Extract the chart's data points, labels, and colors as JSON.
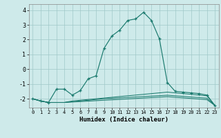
{
  "xlabel": "Humidex (Indice chaleur)",
  "bg_color": "#ceeaea",
  "grid_color": "#a0c8c8",
  "line_color": "#1a7a6e",
  "xlim": [
    -0.5,
    23.5
  ],
  "ylim": [
    -2.6,
    4.4
  ],
  "x_ticks": [
    0,
    1,
    2,
    3,
    4,
    5,
    6,
    7,
    8,
    9,
    10,
    11,
    12,
    13,
    14,
    15,
    16,
    17,
    18,
    19,
    20,
    21,
    22,
    23
  ],
  "y_ticks": [
    -2,
    -1,
    0,
    1,
    2,
    3,
    4
  ],
  "series": [
    [
      [
        0,
        -2.0
      ],
      [
        1,
        -2.15
      ],
      [
        2,
        -2.25
      ],
      [
        3,
        -1.35
      ],
      [
        4,
        -1.35
      ],
      [
        5,
        -1.75
      ],
      [
        6,
        -1.45
      ],
      [
        7,
        -0.65
      ],
      [
        8,
        -0.45
      ],
      [
        9,
        1.4
      ],
      [
        10,
        2.25
      ],
      [
        11,
        2.65
      ],
      [
        12,
        3.3
      ],
      [
        13,
        3.4
      ],
      [
        14,
        3.85
      ],
      [
        15,
        3.3
      ],
      [
        16,
        2.05
      ],
      [
        17,
        -0.9
      ],
      [
        18,
        -1.5
      ],
      [
        19,
        -1.55
      ],
      [
        20,
        -1.6
      ],
      [
        21,
        -1.65
      ],
      [
        22,
        -1.75
      ],
      [
        23,
        -2.45
      ]
    ],
    [
      [
        0,
        -2.0
      ],
      [
        1,
        -2.15
      ],
      [
        2,
        -2.25
      ],
      [
        3,
        -2.25
      ],
      [
        4,
        -2.25
      ],
      [
        5,
        -2.15
      ],
      [
        6,
        -2.1
      ],
      [
        7,
        -2.05
      ],
      [
        8,
        -2.0
      ],
      [
        9,
        -1.95
      ],
      [
        10,
        -1.9
      ],
      [
        11,
        -1.85
      ],
      [
        12,
        -1.8
      ],
      [
        13,
        -1.75
      ],
      [
        14,
        -1.7
      ],
      [
        15,
        -1.65
      ],
      [
        16,
        -1.6
      ],
      [
        17,
        -1.55
      ],
      [
        18,
        -1.6
      ],
      [
        19,
        -1.65
      ],
      [
        20,
        -1.7
      ],
      [
        21,
        -1.75
      ],
      [
        22,
        -1.8
      ],
      [
        23,
        -2.45
      ]
    ],
    [
      [
        0,
        -2.0
      ],
      [
        1,
        -2.15
      ],
      [
        2,
        -2.25
      ],
      [
        3,
        -2.25
      ],
      [
        4,
        -2.25
      ],
      [
        5,
        -2.2
      ],
      [
        6,
        -2.15
      ],
      [
        7,
        -2.1
      ],
      [
        8,
        -2.05
      ],
      [
        9,
        -2.0
      ],
      [
        10,
        -1.97
      ],
      [
        11,
        -1.94
      ],
      [
        12,
        -1.91
      ],
      [
        13,
        -1.88
      ],
      [
        14,
        -1.85
      ],
      [
        15,
        -1.82
      ],
      [
        16,
        -1.79
      ],
      [
        17,
        -1.76
      ],
      [
        18,
        -1.8
      ],
      [
        19,
        -1.84
      ],
      [
        20,
        -1.88
      ],
      [
        21,
        -1.92
      ],
      [
        22,
        -1.96
      ],
      [
        23,
        -2.45
      ]
    ],
    [
      [
        0,
        -2.0
      ],
      [
        1,
        -2.15
      ],
      [
        2,
        -2.25
      ],
      [
        3,
        -2.25
      ],
      [
        4,
        -2.25
      ],
      [
        5,
        -2.22
      ],
      [
        6,
        -2.19
      ],
      [
        7,
        -2.16
      ],
      [
        8,
        -2.13
      ],
      [
        9,
        -2.1
      ],
      [
        10,
        -2.07
      ],
      [
        11,
        -2.04
      ],
      [
        12,
        -2.01
      ],
      [
        13,
        -1.98
      ],
      [
        14,
        -1.95
      ],
      [
        15,
        -1.92
      ],
      [
        16,
        -1.89
      ],
      [
        17,
        -1.86
      ],
      [
        18,
        -1.9
      ],
      [
        19,
        -1.94
      ],
      [
        20,
        -1.98
      ],
      [
        21,
        -2.02
      ],
      [
        22,
        -2.06
      ],
      [
        23,
        -2.45
      ]
    ]
  ]
}
